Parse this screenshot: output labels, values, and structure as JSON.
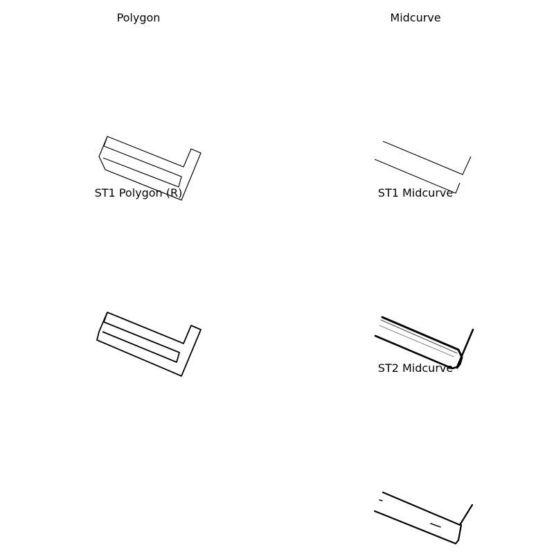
{
  "panels": [
    {
      "id": "polygon",
      "title": "Polygon"
    },
    {
      "id": "midcurve",
      "title": "Midcurve"
    },
    {
      "id": "st1-polygon",
      "title": "ST1 Polygon (R)"
    },
    {
      "id": "st1-midcurve",
      "title": "ST1 Midcurve"
    },
    {
      "id": "st2-polygon",
      "title": ""
    },
    {
      "id": "st2-midcurve",
      "title": "ST2 Midcurve"
    }
  ],
  "colors": {
    "stroke": "#000000",
    "background": "#ffffff"
  }
}
